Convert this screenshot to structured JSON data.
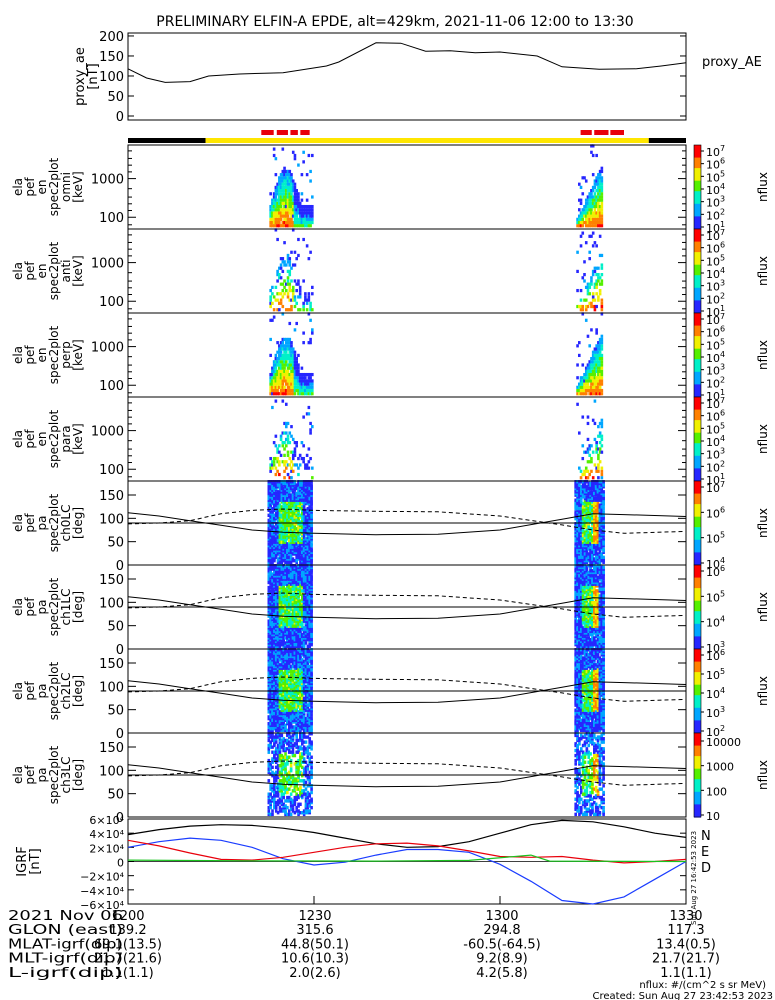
{
  "title": "PRELIMINARY ELFIN-A EPDE, alt=429km, 2021-11-06 12:00 to 13:30",
  "colors": {
    "black": "#000000",
    "yellow": "#ffe600",
    "red": "#e8000b",
    "blue": "#1a3cff",
    "green": "#19c31e"
  },
  "chart_data": [
    {
      "type": "line",
      "panel": "proxy_ae",
      "ylabel": [
        "proxy_ae",
        "[nT]"
      ],
      "legend": "proxy_AE",
      "ylim": [
        0,
        200
      ],
      "yticks": [
        "0",
        "50",
        "100",
        "150",
        "200"
      ],
      "x": [
        0,
        3,
        6,
        10,
        13,
        18,
        22,
        25,
        32,
        34,
        40,
        44,
        48,
        52,
        56,
        60,
        66,
        70,
        76,
        82,
        86,
        90
      ],
      "values": [
        118,
        95,
        84,
        86,
        100,
        105,
        107,
        108,
        125,
        135,
        183,
        182,
        162,
        163,
        158,
        160,
        150,
        123,
        117,
        118,
        125,
        133
      ]
    },
    {
      "type": "status_bar",
      "segments": [
        {
          "from": 0,
          "to": 12.5,
          "color": "black"
        },
        {
          "from": 12.5,
          "to": 84,
          "color": "yellow"
        },
        {
          "from": 84,
          "to": 90,
          "color": "black"
        }
      ],
      "flags": [
        [
          21.5,
          23.5
        ],
        [
          24.0,
          25.8
        ],
        [
          26.2,
          27.4
        ],
        [
          27.8,
          29.3
        ],
        [
          73.0,
          74.8
        ],
        [
          75.2,
          77.5
        ],
        [
          77.8,
          80.0
        ]
      ]
    },
    {
      "type": "heatmap",
      "panel": "en_spec2plot_omni",
      "ylabel": [
        "ela",
        "pef",
        "en",
        "spec2plot",
        "omni",
        "[keV]"
      ],
      "yticks": [
        "100",
        "1000"
      ],
      "zlabel": "nflux",
      "ztick_exponents": [
        "7",
        "6",
        "5",
        "4",
        "3",
        "2",
        "1"
      ]
    },
    {
      "type": "heatmap",
      "panel": "en_spec2plot_anti",
      "ylabel": [
        "ela",
        "pef",
        "en",
        "spec2plot",
        "anti",
        "[keV]"
      ],
      "yticks": [
        "100",
        "1000"
      ],
      "zlabel": "nflux",
      "ztick_exponents": [
        "7",
        "6",
        "5",
        "4",
        "3",
        "2",
        "1"
      ]
    },
    {
      "type": "heatmap",
      "panel": "en_spec2plot_perp",
      "ylabel": [
        "ela",
        "pef",
        "en",
        "spec2plot",
        "perp",
        "[keV]"
      ],
      "yticks": [
        "100",
        "1000"
      ],
      "zlabel": "nflux",
      "ztick_exponents": [
        "7",
        "6",
        "5",
        "4",
        "3",
        "2",
        "1"
      ]
    },
    {
      "type": "heatmap",
      "panel": "en_spec2plot_para",
      "ylabel": [
        "ela",
        "pef",
        "en",
        "spec2plot",
        "para",
        "[keV]"
      ],
      "yticks": [
        "100",
        "1000"
      ],
      "zlabel": "nflux",
      "ztick_exponents": [
        "7",
        "6",
        "5",
        "4",
        "3",
        "2",
        "1"
      ]
    },
    {
      "type": "heatmap",
      "panel": "pa_spec2plot_ch0LC",
      "ylabel": [
        "ela",
        "pef",
        "pa",
        "spec2plot",
        "ch0LC",
        "[deg]"
      ],
      "yticks": [
        "0",
        "50",
        "100",
        "150"
      ],
      "ylim": [
        0,
        180
      ],
      "zlabel": "nflux",
      "ztick_exponents": [
        "7",
        "6",
        "5",
        "4"
      ]
    },
    {
      "type": "heatmap",
      "panel": "pa_spec2plot_ch1LC",
      "ylabel": [
        "ela",
        "pef",
        "pa",
        "spec2plot",
        "ch1LC",
        "[deg]"
      ],
      "yticks": [
        "0",
        "50",
        "100",
        "150"
      ],
      "ylim": [
        0,
        180
      ],
      "zlabel": "nflux",
      "ztick_exponents": [
        "6",
        "5",
        "4",
        "3"
      ]
    },
    {
      "type": "heatmap",
      "panel": "pa_spec2plot_ch2LC",
      "ylabel": [
        "ela",
        "pef",
        "pa",
        "spec2plot",
        "ch2LC",
        "[deg]"
      ],
      "yticks": [
        "0",
        "50",
        "100",
        "150"
      ],
      "ylim": [
        0,
        180
      ],
      "zlabel": "nflux",
      "ztick_exponents": [
        "6",
        "5",
        "4",
        "3",
        "2"
      ]
    },
    {
      "type": "heatmap",
      "panel": "pa_spec2plot_ch3LC",
      "ylabel": [
        "ela",
        "pef",
        "pa",
        "spec2plot",
        "ch3LC",
        "[deg]"
      ],
      "yticks": [
        "0",
        "50",
        "100",
        "150"
      ],
      "ylim": [
        0,
        180
      ],
      "zlabel": "nflux",
      "zticks": [
        "10000",
        "1000",
        "100",
        "10"
      ]
    },
    {
      "type": "line",
      "panel": "igrf",
      "ylabel": [
        "IGRF",
        "[nT]"
      ],
      "ylim": [
        -60000,
        60000
      ],
      "yticks": [
        "6×10⁴",
        "4×10⁴",
        "2×10⁴",
        "0",
        "−2×10⁴",
        "−4×10⁴",
        "−6×10⁴"
      ],
      "legend": [
        "N",
        "E",
        "D"
      ],
      "x": [
        0,
        5,
        10,
        15,
        20,
        25,
        30,
        35,
        40,
        45,
        50,
        55,
        60,
        65,
        70,
        75,
        80,
        85,
        90
      ],
      "series": [
        {
          "name": "N",
          "color": "black",
          "values": [
            38000,
            45000,
            50000,
            52000,
            51000,
            47000,
            41000,
            33000,
            25000,
            20000,
            21000,
            28000,
            40000,
            52000,
            58000,
            56000,
            49000,
            40000,
            34000
          ]
        },
        {
          "name": "E",
          "color": "blue",
          "values": [
            20000,
            28000,
            33000,
            30000,
            20000,
            4000,
            -5000,
            -1000,
            9000,
            17000,
            17000,
            13000,
            -4000,
            -28000,
            -55000,
            -60000,
            -50000,
            -25000,
            0
          ]
        },
        {
          "name": "D",
          "color": "red",
          "values": [
            30000,
            22000,
            12000,
            3000,
            2000,
            6000,
            13000,
            20000,
            25000,
            26000,
            22000,
            15000,
            7000,
            6000,
            7000,
            2000,
            -2000,
            0,
            3000
          ]
        }
      ]
    },
    {
      "type": "table",
      "panel": "orbit_ephemeris",
      "rows": [
        {
          "label": "2021 Nov 06",
          "values": [
            "1200",
            "1230",
            "1300",
            "1330"
          ]
        },
        {
          "label": "GLON (east)",
          "values": [
            "139.2",
            "315.6",
            "294.8",
            "117.3"
          ]
        },
        {
          "label": "MLAT-igrf(dip)",
          "values": [
            "69.1(13.5)",
            "44.8(50.1)",
            "-60.5(-64.5)",
            "13.4(0.5)"
          ]
        },
        {
          "label": "MLT-igrf(dip)",
          "values": [
            "21.7(21.6)",
            "10.6(10.3)",
            "9.2(8.9)",
            "21.7(21.7)"
          ]
        },
        {
          "label": "L-igrf(dip)",
          "values": [
            "1.1(1.1)",
            "2.0(2.6)",
            "4.2(5.8)",
            "1.1(1.1)"
          ]
        }
      ]
    }
  ],
  "stamp": "Sun Aug 27 16:42:53 2023",
  "footer": {
    "units": "nflux: #/(cm^2 s sr MeV)",
    "created": "Created: Sun Aug 27 23:42:53 2023"
  }
}
